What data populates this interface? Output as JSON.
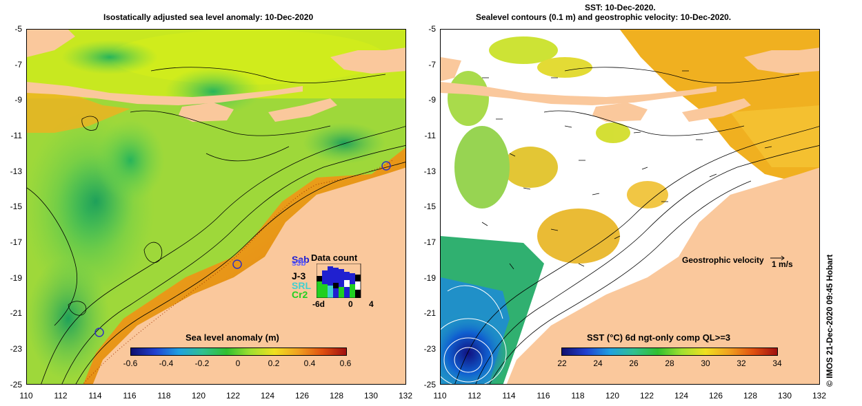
{
  "left_panel": {
    "title": "Isostatically adjusted sea level anomaly: 10-Dec-2020",
    "colorbar": {
      "label": "Sea level anomaly (m)",
      "ticks": [
        "-0.6",
        "-0.4",
        "-0.2",
        "0",
        "0.2",
        "0.4",
        "0.6"
      ]
    },
    "data_count": {
      "title": "Data count",
      "satellites": [
        {
          "name": "Sab",
          "color": "#2020d0"
        },
        {
          "name": "s3b",
          "color": "#6060ff"
        },
        {
          "name": "J-3",
          "color": "#000000"
        },
        {
          "name": "SRL",
          "color": "#40d0d0"
        },
        {
          "name": "Cr2",
          "color": "#20d020"
        }
      ],
      "axis": [
        "-6d",
        "0",
        "4"
      ]
    }
  },
  "right_panel": {
    "title_line1": "SST: 10-Dec-2020.",
    "title_line2": "Sealevel contours (0.1 m) and geostrophic velocity: 10-Dec-2020.",
    "colorbar": {
      "label": "SST (°C) 6d ngt-only comp QL>=3",
      "ticks": [
        "22",
        "24",
        "26",
        "28",
        "30",
        "32",
        "34"
      ]
    },
    "velocity_legend": {
      "label": "Geostrophic velocity",
      "scale": "1 m/s"
    }
  },
  "axes": {
    "y_ticks": [
      "-5",
      "-7",
      "-9",
      "-11",
      "-13",
      "-15",
      "-17",
      "-19",
      "-21",
      "-23",
      "-25"
    ],
    "x_ticks": [
      "110",
      "112",
      "114",
      "116",
      "118",
      "120",
      "122",
      "124",
      "126",
      "128",
      "130",
      "132"
    ]
  },
  "credit": "© IMOS 21-Dec-2020 09:45 Hobart"
}
